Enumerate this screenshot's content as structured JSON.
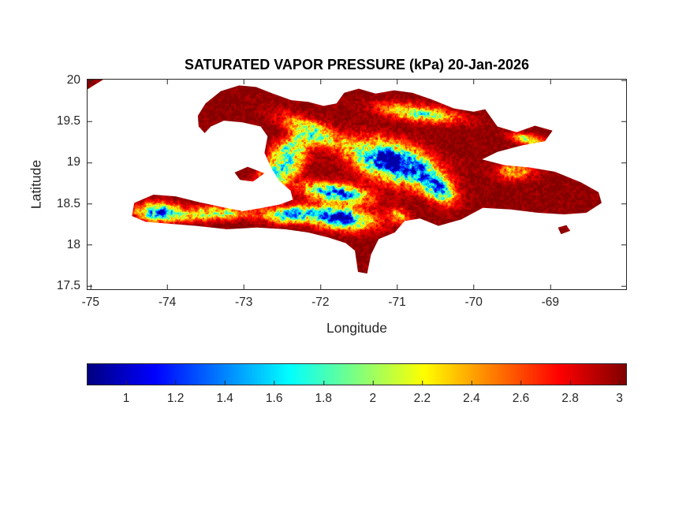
{
  "colors": {
    "background": "#ffffff",
    "axis": "#262626",
    "title_text": "#000000"
  },
  "chart_data": {
    "type": "heatmap",
    "title": "SATURATED VAPOR PRESSURE (kPa) 20-Jan-2026",
    "date_label": "20-Jan-2026",
    "units": "kPa",
    "region": "Hispaniola",
    "xlabel": "Longitude",
    "ylabel": "Latitude",
    "xlim": [
      -75.05,
      -68.0
    ],
    "ylim": [
      17.45,
      20.02
    ],
    "xticks": [
      -75,
      -74,
      -73,
      -72,
      -71,
      -70,
      -69
    ],
    "yticks": [
      17.5,
      18,
      18.5,
      19,
      19.5,
      20
    ],
    "grid": false,
    "colormap": "jet",
    "colorbar": {
      "orientation": "horizontal",
      "position": "below",
      "ticks": [
        1,
        1.2,
        1.4,
        1.6,
        1.8,
        2,
        2.2,
        2.4,
        2.6,
        2.8,
        3
      ],
      "cmin": 0.84,
      "cmax": 3.03
    },
    "value_range_kpa": [
      0.95,
      3.0
    ],
    "field_model": {
      "base_kpa": 3.0,
      "clamp": [
        0.93,
        3.02
      ],
      "noise": {
        "ridge_scale": 18,
        "amp_base": 0.13,
        "amp_relief": 0.5,
        "octave1": 34,
        "octave2": 90
      },
      "mountains": [
        {
          "id": "cordillera-central",
          "lon": -71.05,
          "lat": 19.0,
          "sx": 0.48,
          "sy": 0.2,
          "rot": -15,
          "depth": 2.3
        },
        {
          "id": "cordillera-central-se",
          "lon": -70.48,
          "lat": 18.7,
          "sx": 0.24,
          "sy": 0.13,
          "rot": -35,
          "depth": 1.6
        },
        {
          "id": "sierra-de-neiba",
          "lon": -71.78,
          "lat": 18.63,
          "sx": 0.38,
          "sy": 0.1,
          "rot": -8,
          "depth": 1.8
        },
        {
          "id": "sierra-de-bahoruco",
          "lon": -71.75,
          "lat": 18.33,
          "sx": 0.38,
          "sy": 0.12,
          "rot": -6,
          "depth": 2.0
        },
        {
          "id": "massif-de-la-selle",
          "lon": -72.38,
          "lat": 18.37,
          "sx": 0.28,
          "sy": 0.09,
          "rot": 3,
          "depth": 1.5
        },
        {
          "id": "massif-de-la-hotte",
          "lon": -74.12,
          "lat": 18.4,
          "sx": 0.24,
          "sy": 0.1,
          "rot": 0,
          "depth": 1.7
        },
        {
          "id": "tiburon-spine",
          "lon": -73.4,
          "lat": 18.38,
          "sx": 0.5,
          "sy": 0.08,
          "rot": 2,
          "depth": 1.0
        },
        {
          "id": "chaine-des-matheux",
          "lon": -72.52,
          "lat": 18.88,
          "sx": 0.3,
          "sy": 0.13,
          "rot": 30,
          "depth": 1.3
        },
        {
          "id": "montagnes-noires",
          "lon": -72.38,
          "lat": 19.18,
          "sx": 0.3,
          "sy": 0.13,
          "rot": 28,
          "depth": 1.1
        },
        {
          "id": "massif-du-nord",
          "lon": -72.1,
          "lat": 19.38,
          "sx": 0.4,
          "sy": 0.11,
          "rot": -22,
          "depth": 1.0
        },
        {
          "id": "cordillera-septentrional",
          "lon": -70.72,
          "lat": 19.6,
          "sx": 0.48,
          "sy": 0.09,
          "rot": -7,
          "depth": 1.1
        },
        {
          "id": "samana-ridge",
          "lon": -69.3,
          "lat": 19.28,
          "sx": 0.2,
          "sy": 0.06,
          "rot": -12,
          "depth": 0.9
        },
        {
          "id": "cordillera-oriental",
          "lon": -69.45,
          "lat": 18.9,
          "sx": 0.22,
          "sy": 0.1,
          "rot": 0,
          "depth": 0.7
        },
        {
          "id": "sierra-martin-garcia",
          "lon": -70.97,
          "lat": 18.35,
          "sx": 0.13,
          "sy": 0.08,
          "rot": -20,
          "depth": 0.8
        }
      ]
    },
    "islands": {
      "hispaniola": [
        [
          -73.5,
          19.72
        ],
        [
          -73.3,
          19.87
        ],
        [
          -73.06,
          19.94
        ],
        [
          -72.84,
          19.92
        ],
        [
          -72.62,
          19.84
        ],
        [
          -72.38,
          19.76
        ],
        [
          -72.16,
          19.74
        ],
        [
          -71.96,
          19.69
        ],
        [
          -71.79,
          19.72
        ],
        [
          -71.69,
          19.85
        ],
        [
          -71.5,
          19.9
        ],
        [
          -71.28,
          19.84
        ],
        [
          -71.04,
          19.88
        ],
        [
          -70.8,
          19.85
        ],
        [
          -70.55,
          19.77
        ],
        [
          -70.26,
          19.66
        ],
        [
          -70.0,
          19.62
        ],
        [
          -69.85,
          19.65
        ],
        [
          -69.69,
          19.44
        ],
        [
          -69.44,
          19.37
        ],
        [
          -69.2,
          19.45
        ],
        [
          -68.97,
          19.39
        ],
        [
          -69.07,
          19.26
        ],
        [
          -69.37,
          19.21
        ],
        [
          -69.69,
          19.13
        ],
        [
          -69.89,
          19.04
        ],
        [
          -69.6,
          18.97
        ],
        [
          -69.26,
          18.94
        ],
        [
          -68.94,
          18.89
        ],
        [
          -68.6,
          18.76
        ],
        [
          -68.37,
          18.64
        ],
        [
          -68.33,
          18.51
        ],
        [
          -68.53,
          18.39
        ],
        [
          -68.82,
          18.37
        ],
        [
          -69.16,
          18.39
        ],
        [
          -69.52,
          18.43
        ],
        [
          -69.88,
          18.45
        ],
        [
          -70.16,
          18.31
        ],
        [
          -70.46,
          18.23
        ],
        [
          -70.7,
          18.32
        ],
        [
          -70.9,
          18.29
        ],
        [
          -71.03,
          18.15
        ],
        [
          -71.24,
          18.07
        ],
        [
          -71.34,
          17.88
        ],
        [
          -71.39,
          17.65
        ],
        [
          -71.51,
          17.67
        ],
        [
          -71.55,
          17.93
        ],
        [
          -71.67,
          18.02
        ],
        [
          -71.9,
          18.09
        ],
        [
          -72.16,
          18.15
        ],
        [
          -72.46,
          18.19
        ],
        [
          -72.83,
          18.21
        ],
        [
          -73.22,
          18.19
        ],
        [
          -73.62,
          18.23
        ],
        [
          -74.02,
          18.26
        ],
        [
          -74.28,
          18.28
        ],
        [
          -74.46,
          18.35
        ],
        [
          -74.43,
          18.51
        ],
        [
          -74.18,
          18.61
        ],
        [
          -73.89,
          18.59
        ],
        [
          -73.59,
          18.52
        ],
        [
          -73.29,
          18.46
        ],
        [
          -73.01,
          18.41
        ],
        [
          -72.76,
          18.45
        ],
        [
          -72.53,
          18.49
        ],
        [
          -72.36,
          18.55
        ],
        [
          -72.39,
          18.66
        ],
        [
          -72.54,
          18.78
        ],
        [
          -72.64,
          18.93
        ],
        [
          -72.73,
          19.12
        ],
        [
          -72.69,
          19.32
        ],
        [
          -72.78,
          19.44
        ],
        [
          -73.02,
          19.49
        ],
        [
          -73.26,
          19.51
        ],
        [
          -73.43,
          19.44
        ],
        [
          -73.51,
          19.36
        ],
        [
          -73.59,
          19.44
        ],
        [
          -73.6,
          19.57
        ]
      ],
      "gonave": [
        [
          -73.12,
          18.88
        ],
        [
          -72.95,
          18.95
        ],
        [
          -72.73,
          18.87
        ],
        [
          -72.88,
          18.77
        ],
        [
          -73.05,
          18.79
        ]
      ],
      "saona": [
        [
          -68.9,
          18.21
        ],
        [
          -68.79,
          18.24
        ],
        [
          -68.74,
          18.17
        ],
        [
          -68.86,
          18.13
        ]
      ],
      "cuba-southeast-edge": [
        [
          -75.06,
          20.03
        ],
        [
          -74.8,
          20.03
        ],
        [
          -74.94,
          19.95
        ],
        [
          -75.06,
          19.88
        ]
      ]
    }
  }
}
